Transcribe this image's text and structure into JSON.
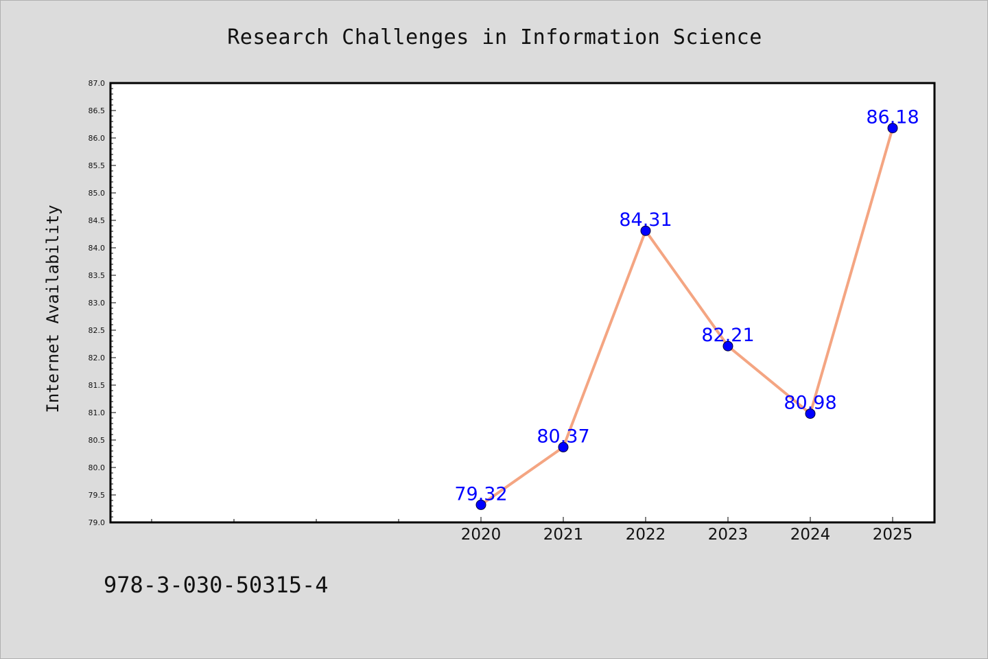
{
  "chart_data": {
    "type": "line",
    "title": "Research Challenges in Information Science",
    "xlabel": "",
    "ylabel": "Internet Availability",
    "categories": [
      "2020",
      "2021",
      "2022",
      "2023",
      "2024",
      "2025"
    ],
    "series": [
      {
        "values": [
          79.32,
          80.37,
          84.31,
          82.21,
          80.98,
          86.18
        ]
      }
    ],
    "data_labels": [
      "79.32",
      "80.37",
      "84.31",
      "82.21",
      "80.98",
      "86.18"
    ],
    "ylim": [
      79.0,
      87.0
    ],
    "yticks": [
      "79.0",
      "79.5",
      "80.0",
      "80.5",
      "81.0",
      "81.5",
      "82.0",
      "82.5",
      "83.0",
      "83.5",
      "84.0",
      "84.5",
      "85.0",
      "85.5",
      "86.0",
      "86.5",
      "87.0"
    ],
    "grid": false,
    "legend": "none",
    "colors": {
      "line": "#f4a582",
      "marker": "#0000ff",
      "label": "#0000ff",
      "background": "#dcdcdc",
      "plot_background": "#ffffff"
    }
  },
  "footer": {
    "isbn": "978-3-030-50315-4"
  }
}
